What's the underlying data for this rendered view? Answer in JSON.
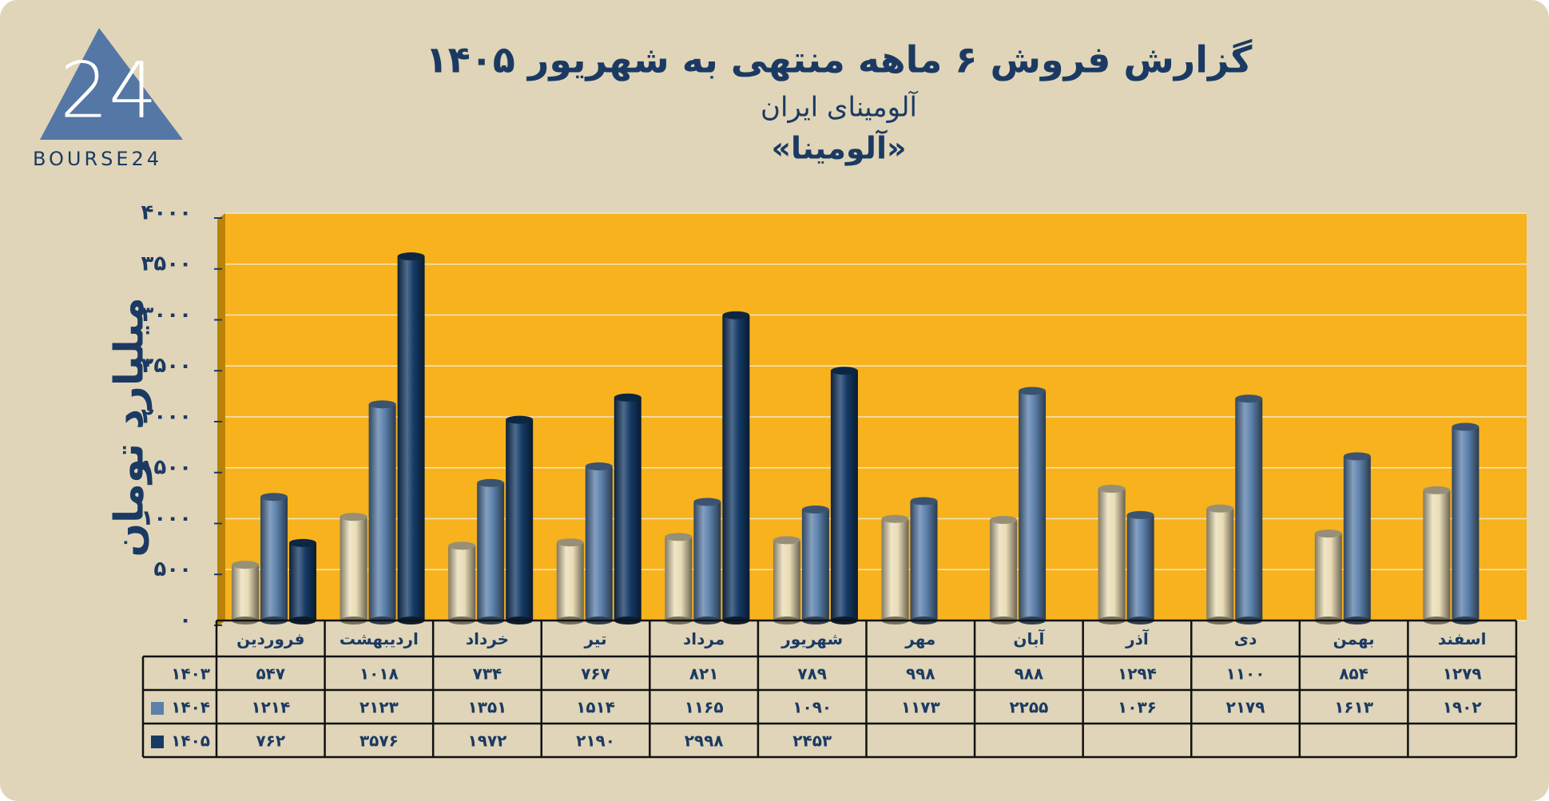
{
  "logo": {
    "mark": "24",
    "text": "BOURSE24"
  },
  "chart_data": {
    "type": "bar",
    "title": "گزارش  فروش ۶ ماهه منتهی به شهریور ۱۴۰۵",
    "subtitle": "آلومینای ایران",
    "company": "«آلومینا»",
    "y_label": "میلیارد تومان",
    "categories": [
      "فروردین",
      "اردیبهشت",
      "خرداد",
      "تیر",
      "مرداد",
      "شهریور",
      "مهر",
      "آبان",
      "آذر",
      "دی",
      "بهمن",
      "اسفند"
    ],
    "series": [
      {
        "name": "۱۴۰۳",
        "color": "#e9dcb6",
        "values": [
          547,
          1018,
          734,
          767,
          821,
          789,
          998,
          988,
          1294,
          1100,
          854,
          1279
        ],
        "value_labels": [
          "۵۴۷",
          "۱۰۱۸",
          "۷۳۴",
          "۷۶۷",
          "۸۲۱",
          "۷۸۹",
          "۹۹۸",
          "۹۸۸",
          "۱۲۹۴",
          "۱۱۰۰",
          "۸۵۴",
          "۱۲۷۹"
        ]
      },
      {
        "name": "۱۴۰۴",
        "color": "#5b80ab",
        "values": [
          1214,
          2123,
          1351,
          1514,
          1165,
          1090,
          1173,
          2255,
          1036,
          2179,
          1613,
          1902
        ],
        "value_labels": [
          "۱۲۱۴",
          "۲۱۲۳",
          "۱۳۵۱",
          "۱۵۱۴",
          "۱۱۶۵",
          "۱۰۹۰",
          "۱۱۷۳",
          "۲۲۵۵",
          "۱۰۳۶",
          "۲۱۷۹",
          "۱۶۱۳",
          "۱۹۰۲"
        ]
      },
      {
        "name": "۱۴۰۵",
        "color": "#143a66",
        "values": [
          762,
          3576,
          1972,
          2190,
          2998,
          2453,
          null,
          null,
          null,
          null,
          null,
          null
        ],
        "value_labels": [
          "۷۶۲",
          "۳۵۷۶",
          "۱۹۷۲",
          "۲۱۹۰",
          "۲۹۹۸",
          "۲۴۵۳",
          null,
          null,
          null,
          null,
          null,
          null
        ]
      }
    ],
    "ylim": [
      0,
      4000
    ],
    "yticks": [
      {
        "value": 0,
        "label": "۰"
      },
      {
        "value": 500,
        "label": "۵۰۰"
      },
      {
        "value": 1000,
        "label": "۱۰۰۰"
      },
      {
        "value": 1500,
        "label": "۱۵۰۰"
      },
      {
        "value": 2000,
        "label": "۲۰۰۰"
      },
      {
        "value": 2500,
        "label": "۲۵۰۰"
      },
      {
        "value": 3000,
        "label": "۳۰۰۰"
      },
      {
        "value": 3500,
        "label": "۳۵۰۰"
      },
      {
        "value": 4000,
        "label": "۴۰۰۰"
      }
    ],
    "grid": true,
    "plot_color": "#f7b21d"
  }
}
